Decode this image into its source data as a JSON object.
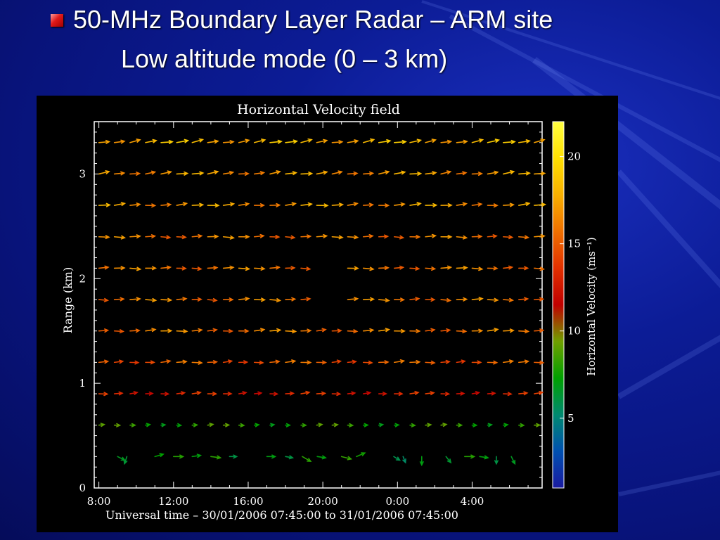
{
  "slide": {
    "title_line1": "50-MHz Boundary Layer Radar – ARM site",
    "title_line2": "Low altitude mode (0 – 3 km)",
    "bullet_icon": "red-square-bullet-icon"
  },
  "chart_data": {
    "type": "vector-field",
    "title": "Horizontal Velocity field",
    "ylabel": "Range (km)",
    "xlabel": "Universal time – 30/01/2006 07:45:00 to 31/01/2006 07:45:00",
    "yticks": [
      0,
      1,
      2,
      3
    ],
    "ylim": [
      0,
      3.5
    ],
    "xticks": [
      "8:00",
      "12:00",
      "16:00",
      "20:00",
      "0:00",
      "4:00"
    ],
    "xtick_hours": [
      8,
      12,
      16,
      20,
      24,
      28
    ],
    "xlim_hours": [
      7.75,
      31.75
    ],
    "colorbar": {
      "label": "Horizontal Velocity (ms⁻¹)",
      "ticks": [
        5,
        10,
        15,
        20
      ],
      "range": [
        1,
        22
      ],
      "colors": [
        "#1a1aa0",
        "#0050b0",
        "#008a70",
        "#00a000",
        "#70a000",
        "#c00000",
        "#e23000",
        "#f07000",
        "#f8b000",
        "#ffe000",
        "#ffff40"
      ]
    },
    "heights_km": [
      0.3,
      0.6,
      0.9,
      1.2,
      1.5,
      1.8,
      2.1,
      2.4,
      2.7,
      3.0,
      3.3
    ],
    "times_hours": [
      8.0,
      8.83,
      9.67,
      10.5,
      11.33,
      12.17,
      13.0,
      13.83,
      14.67,
      15.5,
      16.33,
      17.17,
      18.0,
      18.83,
      19.67,
      20.5,
      21.33,
      22.17,
      23.0,
      23.83,
      24.67,
      25.5,
      26.33,
      27.17,
      28.0,
      28.83,
      29.67,
      30.5,
      31.33
    ],
    "speed_by_height": [
      7,
      8,
      13,
      15,
      16,
      16,
      16,
      16,
      17,
      17,
      18
    ],
    "direction_deg_by_height": [
      -10,
      3,
      4,
      3,
      3,
      0,
      0,
      0,
      5,
      8,
      10
    ],
    "gap": {
      "hours": [
        19.2,
        20.5
      ],
      "heights_km": [
        1.8,
        2.1
      ]
    },
    "low_level_vectors": [
      {
        "t": 9.0,
        "u": 6,
        "v": -3
      },
      {
        "t": 9.5,
        "u": -2,
        "v": -6
      },
      {
        "t": 11.0,
        "u": 7,
        "v": 2
      },
      {
        "t": 12.0,
        "u": 8,
        "v": 0
      },
      {
        "t": 13.0,
        "u": 7,
        "v": 1
      },
      {
        "t": 14.0,
        "u": 8,
        "v": -1
      },
      {
        "t": 15.0,
        "u": 6,
        "v": 0
      },
      {
        "t": 17.0,
        "u": 7,
        "v": 0
      },
      {
        "t": 18.0,
        "u": 6,
        "v": -1
      },
      {
        "t": 18.9,
        "u": 7,
        "v": -4
      },
      {
        "t": 19.7,
        "u": 7,
        "v": -1
      },
      {
        "t": 21.0,
        "u": 8,
        "v": -2
      },
      {
        "t": 21.8,
        "u": 7,
        "v": 3
      },
      {
        "t": 23.8,
        "u": 5,
        "v": -3
      },
      {
        "t": 24.3,
        "u": 2,
        "v": -5
      },
      {
        "t": 25.3,
        "u": 0,
        "v": -7
      },
      {
        "t": 26.6,
        "u": 4,
        "v": -5
      },
      {
        "t": 27.6,
        "u": 8,
        "v": 0
      },
      {
        "t": 28.4,
        "u": 7,
        "v": -1
      },
      {
        "t": 29.3,
        "u": 0,
        "v": -6
      },
      {
        "t": 30.1,
        "u": 3,
        "v": -6
      }
    ]
  }
}
